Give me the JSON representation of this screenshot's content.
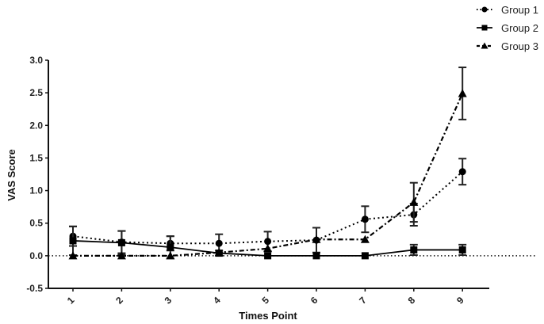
{
  "chart_data": {
    "type": "line",
    "title": "",
    "xlabel": "Times Point",
    "ylabel": "VAS Score",
    "ylim": [
      -0.5,
      3.0
    ],
    "yticks": [
      "-0.5",
      "0.0",
      "0.5",
      "1.0",
      "1.5",
      "2.0",
      "2.5",
      "3.0"
    ],
    "categories": [
      "1",
      "2",
      "3",
      "4",
      "5",
      "6",
      "7",
      "8",
      "9"
    ],
    "reference_line": 0.0,
    "grid": false,
    "legend_position": "top-right",
    "series": [
      {
        "name": "Group 1",
        "marker": "circle",
        "line_style": "dotted",
        "values": [
          0.3,
          0.21,
          0.19,
          0.19,
          0.22,
          0.24,
          0.56,
          0.63,
          1.29
        ],
        "error": [
          0.15,
          0.17,
          0.11,
          0.14,
          0.15,
          0.19,
          0.2,
          0.17,
          0.2
        ]
      },
      {
        "name": "Group 2",
        "marker": "square",
        "line_style": "solid",
        "values": [
          0.23,
          0.2,
          0.13,
          0.04,
          0.0,
          0.0,
          0.0,
          0.09,
          0.09
        ],
        "error": [
          0.22,
          0.18,
          0.17,
          0.04,
          0.0,
          0.0,
          0.0,
          0.08,
          0.08
        ]
      },
      {
        "name": "Group 3",
        "marker": "triangle",
        "line_style": "dash-dot",
        "values": [
          0.0,
          0.0,
          0.0,
          0.05,
          0.11,
          0.25,
          0.25,
          0.82,
          2.49
        ],
        "error": [
          0.0,
          0.0,
          0.0,
          0.0,
          0.0,
          0.0,
          0.0,
          0.3,
          0.4
        ]
      }
    ]
  }
}
